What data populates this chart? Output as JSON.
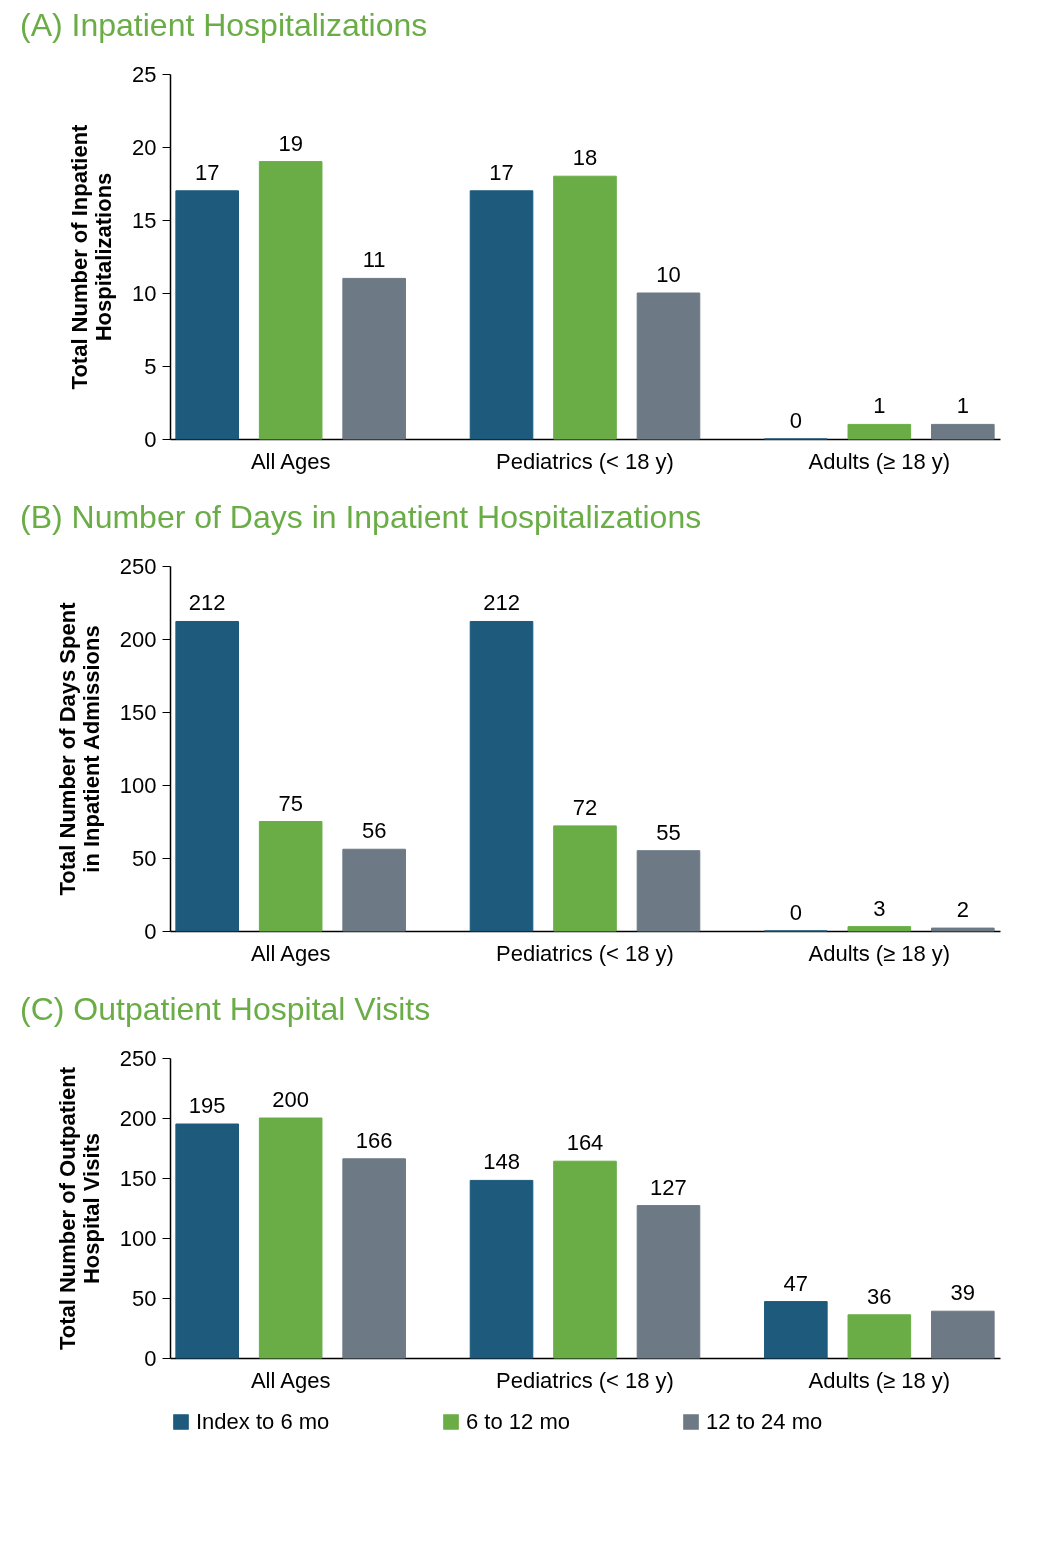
{
  "chart_data": [
    {
      "type": "bar",
      "title": "(A) Inpatient Hospitalizations",
      "ylabel": "Total Number of Inpatient\nHospitalizations",
      "categories": [
        "All Ages",
        "Pediatrics (< 18 y)",
        "Adults (≥ 18 y)"
      ],
      "series": [
        {
          "color": "#1d5a7c",
          "values": [
            17,
            17,
            0
          ]
        },
        {
          "color": "#6aad46",
          "values": [
            19,
            18,
            1
          ]
        },
        {
          "color": "#6d7a85",
          "values": [
            11,
            10,
            1
          ]
        }
      ],
      "ylim": [
        0,
        25
      ],
      "yticks": [
        0,
        5,
        10,
        15,
        20,
        25
      ],
      "data_labels": true,
      "legend": false,
      "grid": false
    },
    {
      "type": "bar",
      "title": "(B) Number of Days in Inpatient Hospitalizations",
      "ylabel": "Total Number of Days Spent\nin Inpatient Admissions",
      "categories": [
        "All Ages",
        "Pediatrics (< 18 y)",
        "Adults (≥ 18 y)"
      ],
      "series": [
        {
          "color": "#1d5a7c",
          "values": [
            212,
            212,
            0
          ]
        },
        {
          "color": "#6aad46",
          "values": [
            75,
            72,
            3
          ]
        },
        {
          "color": "#6d7a85",
          "values": [
            56,
            55,
            2
          ]
        }
      ],
      "ylim": [
        0,
        250
      ],
      "yticks": [
        0,
        50,
        100,
        150,
        200,
        250
      ],
      "data_labels": true,
      "legend": false,
      "grid": false
    },
    {
      "type": "bar",
      "title": "(C) Outpatient Hospital Visits",
      "ylabel": "Total Number of Outpatient\nHospital Visits",
      "categories": [
        "All Ages",
        "Pediatrics (< 18 y)",
        "Adults (≥ 18 y)"
      ],
      "series": [
        {
          "name": "Index to 6 mo",
          "color": "#1d5a7c",
          "values": [
            195,
            148,
            47
          ]
        },
        {
          "name": "6 to 12 mo",
          "color": "#6aad46",
          "values": [
            200,
            164,
            36
          ]
        },
        {
          "name": "12 to 24 mo",
          "color": "#6d7a85",
          "values": [
            166,
            127,
            39
          ]
        }
      ],
      "ylim": [
        0,
        250
      ],
      "yticks": [
        0,
        50,
        100,
        150,
        200,
        250
      ],
      "data_labels": true,
      "legend": "bottom",
      "grid": false
    }
  ]
}
